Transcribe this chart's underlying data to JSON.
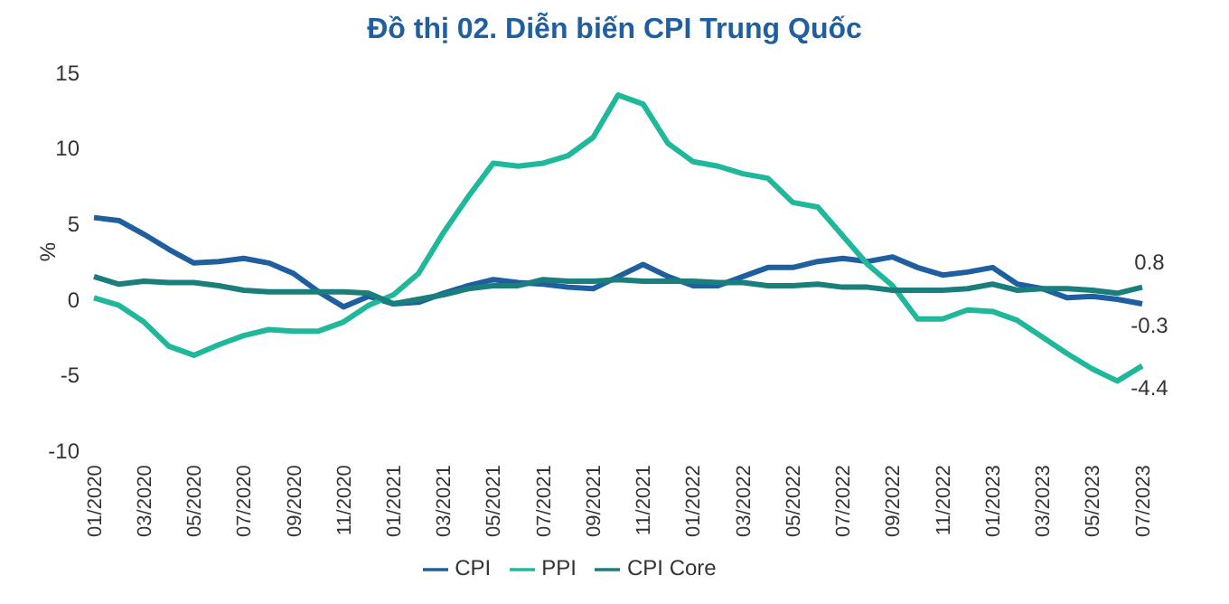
{
  "chart_data": {
    "type": "line",
    "title": "Đồ thị 02. Diễn biến CPI Trung Quốc",
    "ylabel": "%",
    "categories": [
      "01/2020",
      null,
      "03/2020",
      null,
      "05/2020",
      null,
      "07/2020",
      null,
      "09/2020",
      null,
      "11/2020",
      null,
      "01/2021",
      null,
      "03/2021",
      null,
      "05/2021",
      null,
      "07/2021",
      null,
      "09/2021",
      null,
      "11/2021",
      null,
      "01/2022",
      null,
      "03/2022",
      null,
      "05/2022",
      null,
      "07/2022",
      null,
      "09/2022",
      null,
      "11/2022",
      null,
      "01/2023",
      null,
      "03/2023",
      null,
      "05/2023",
      null,
      "07/2023"
    ],
    "series": [
      {
        "name": "CPI",
        "color": "#1f5fa0",
        "values": [
          5.4,
          5.2,
          4.3,
          3.3,
          2.4,
          2.5,
          2.7,
          2.4,
          1.7,
          0.5,
          -0.5,
          0.2,
          -0.3,
          -0.2,
          0.4,
          0.9,
          1.3,
          1.1,
          1.0,
          0.8,
          0.7,
          1.5,
          2.3,
          1.5,
          0.9,
          0.9,
          1.5,
          2.1,
          2.1,
          2.5,
          2.7,
          2.5,
          2.8,
          2.1,
          1.6,
          1.8,
          2.1,
          1.0,
          0.7,
          0.1,
          0.2,
          0.0,
          -0.3
        ],
        "value_labels": [
          null,
          null,
          null,
          null,
          null,
          null,
          null,
          null,
          null,
          null,
          null,
          null,
          null,
          null,
          null,
          null,
          null,
          null,
          null,
          null,
          null,
          null,
          null,
          null,
          null,
          null,
          null,
          null,
          null,
          null,
          null,
          null,
          null,
          null,
          null,
          null,
          null,
          null,
          null,
          null,
          null,
          null,
          "-0.3"
        ]
      },
      {
        "name": "PPI",
        "color": "#1fb89a",
        "values": [
          0.1,
          -0.4,
          -1.5,
          -3.1,
          -3.7,
          -3.0,
          -2.4,
          -2.0,
          -2.1,
          -2.1,
          -1.5,
          -0.4,
          0.3,
          1.7,
          4.4,
          6.8,
          9.0,
          8.8,
          9.0,
          9.5,
          10.7,
          13.5,
          12.9,
          10.3,
          9.1,
          8.8,
          8.3,
          8.0,
          6.4,
          6.1,
          4.2,
          2.3,
          0.9,
          -1.3,
          -1.3,
          -0.7,
          -0.8,
          -1.4,
          -2.5,
          -3.6,
          -4.6,
          -5.4,
          -4.4
        ],
        "value_labels": [
          null,
          null,
          null,
          null,
          null,
          null,
          null,
          null,
          null,
          null,
          null,
          null,
          null,
          null,
          null,
          null,
          null,
          null,
          null,
          null,
          null,
          null,
          null,
          null,
          null,
          null,
          null,
          null,
          null,
          null,
          null,
          null,
          null,
          null,
          null,
          null,
          null,
          null,
          null,
          null,
          null,
          null,
          "-4.4"
        ]
      },
      {
        "name": "CPI Core",
        "color": "#1a7f7c",
        "values": [
          1.5,
          1.0,
          1.2,
          1.1,
          1.1,
          0.9,
          0.6,
          0.5,
          0.5,
          0.5,
          0.5,
          0.4,
          -0.3,
          0.0,
          0.3,
          0.7,
          0.9,
          0.9,
          1.3,
          1.2,
          1.2,
          1.3,
          1.2,
          1.2,
          1.2,
          1.1,
          1.1,
          0.9,
          0.9,
          1.0,
          0.8,
          0.8,
          0.6,
          0.6,
          0.6,
          0.7,
          1.0,
          0.6,
          0.7,
          0.7,
          0.6,
          0.4,
          0.8
        ],
        "value_labels": [
          null,
          null,
          null,
          null,
          null,
          null,
          null,
          null,
          null,
          null,
          null,
          null,
          null,
          null,
          null,
          null,
          null,
          null,
          null,
          null,
          null,
          null,
          null,
          null,
          null,
          null,
          null,
          null,
          null,
          null,
          null,
          null,
          null,
          null,
          null,
          null,
          null,
          null,
          null,
          null,
          null,
          null,
          "0.8"
        ]
      }
    ],
    "ylim": [
      -10,
      15
    ],
    "yticks": [
      -10,
      -5,
      0,
      5,
      10,
      15
    ],
    "grid": false,
    "legend": "bottom",
    "marker": "none",
    "line_style": "solid"
  }
}
